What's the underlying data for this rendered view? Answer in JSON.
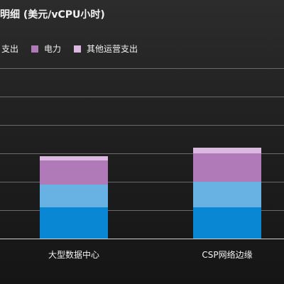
{
  "title": "明细 (美元/vCPU小时)",
  "chart_data": {
    "type": "bar",
    "stacked": true,
    "categories": [
      "大型数据中心",
      "CSP网络边缘"
    ],
    "series": [
      {
        "name": "",
        "color": "#0a87d2",
        "values": [
          0.11,
          0.11
        ]
      },
      {
        "name": "",
        "color": "#67b2e2",
        "values": [
          0.08,
          0.09
        ]
      },
      {
        "name": "支出",
        "color": "#b07ab8",
        "values": [
          0.085,
          0.1
        ]
      },
      {
        "name": "电力",
        "color": "#b07ab8",
        "values": [
          0.0,
          0.0
        ]
      },
      {
        "name": "其他运营支出",
        "color": "#dab8e0",
        "values": [
          0.015,
          0.02
        ]
      }
    ],
    "ylim": [
      0,
      0.6
    ],
    "grid": true,
    "legend_position": "top"
  },
  "legend": [
    {
      "label": "支出",
      "color": "#b07ab8"
    },
    {
      "label": "电力",
      "color": "#b07ab8"
    },
    {
      "label": "其他运营支出",
      "color": "#dab8e0"
    }
  ]
}
